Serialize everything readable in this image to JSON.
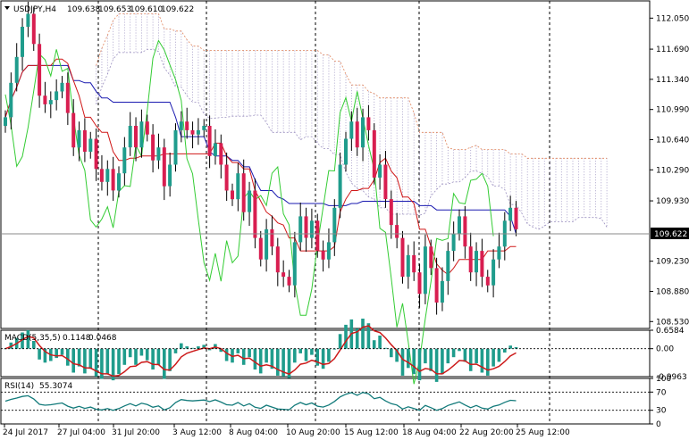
{
  "main_header": {
    "symbol": "USDJPY,H4",
    "open": "109.638",
    "high": "109.653",
    "low": "109.610",
    "close": "109.622"
  },
  "current_price": "109.622",
  "macd_header": {
    "label": "MACD(5,35,5)",
    "main": "0.1148",
    "signal": "0.0468"
  },
  "rsi_header": {
    "label": "RSI(14)",
    "value": "55.3074"
  },
  "colors": {
    "bull": "#1f9c8c",
    "bear": "#d81e50",
    "kumo": "#9a8fbf",
    "senkou_b": "#e0835a",
    "kijun": "#1a1ab0",
    "tenkan": "#d01818",
    "chikou": "#33cc33",
    "rsi": "#127a7a",
    "macd_hist": "#1f9c8c",
    "macd_signal": "#cc1a1a"
  },
  "chart_data": [
    {
      "type": "candlestick",
      "title": "USDJPY,H4",
      "price_axis_ticks": [
        "112.050",
        "111.690",
        "111.340",
        "110.990",
        "110.640",
        "110.290",
        "109.930",
        "109.230",
        "108.880",
        "108.530"
      ],
      "ylim": [
        108.45,
        112.25
      ],
      "time_labels": [
        "24 Jul 2017",
        "27 Jul 04:00",
        "31 Jul 20:00",
        "3 Aug 12:00",
        "8 Aug 04:00",
        "10 Aug 20:00",
        "15 Aug 12:00",
        "18 Aug 04:00",
        "22 Aug 20:00",
        "25 Aug 12:00"
      ],
      "close_series": [
        110.9,
        111.3,
        111.6,
        111.95,
        112.1,
        111.75,
        111.15,
        111.05,
        111.1,
        111.2,
        111.3,
        110.95,
        110.55,
        110.75,
        110.5,
        110.65,
        110.3,
        110.15,
        110.3,
        110.05,
        110.25,
        110.55,
        110.8,
        110.55,
        110.85,
        110.7,
        110.4,
        110.55,
        110.1,
        110.35,
        110.75,
        110.85,
        110.75,
        110.7,
        110.75,
        110.8,
        110.45,
        110.6,
        110.35,
        110.05,
        109.95,
        110.25,
        109.8,
        110.05,
        109.5,
        109.25,
        109.6,
        109.4,
        109.1,
        109.05,
        108.95,
        109.45,
        109.75,
        109.5,
        109.7,
        109.35,
        109.25,
        109.45,
        109.85,
        110.35,
        110.65,
        110.85,
        110.55,
        110.9,
        110.75,
        110.2,
        110.35,
        109.95,
        109.65,
        109.5,
        109.05,
        109.3,
        109.1,
        108.85,
        109.4,
        109.15,
        108.75,
        109.0,
        109.35,
        109.55,
        109.75,
        109.4,
        109.1,
        109.35,
        109.05,
        108.95,
        109.25,
        109.4,
        109.7,
        109.85,
        109.6
      ],
      "macd_axis": {
        "ticks": [
          "0.6584",
          "0.00",
          "-0.9963"
        ],
        "current_main": 0.1148,
        "current_signal": 0.0468
      },
      "rsi_axis": {
        "ticks": [
          "100",
          "70",
          "30",
          "0"
        ],
        "current": 55.3074
      }
    }
  ]
}
